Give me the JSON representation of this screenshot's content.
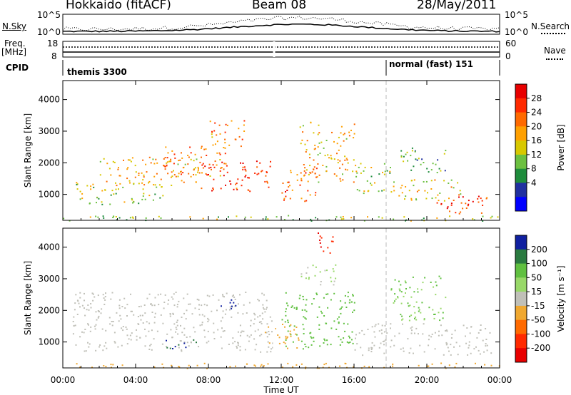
{
  "header": {
    "station": "Hokkaido (fitACF)",
    "beam": "Beam 08",
    "date": "28/May/2011"
  },
  "panels": {
    "noise": {
      "left_label": "N.Sky",
      "right_label": "N.Search",
      "left_ticks": [
        "10^5",
        "10^0"
      ],
      "right_ticks": [
        "10^5",
        "10^0"
      ]
    },
    "freq": {
      "left_label": "Freq.",
      "left_unit": "[MHz]",
      "right_label": "Nave",
      "left_ticks": [
        "18",
        "8"
      ],
      "right_ticks": [
        "60",
        "0"
      ]
    },
    "cpid": {
      "label": "CPID",
      "modes": [
        "themis 3300",
        "normal (fast) 151"
      ]
    }
  },
  "power_colorbar": {
    "label": "Power [dB]",
    "ticks": [
      "28",
      "24",
      "20",
      "16",
      "12",
      "8",
      "4"
    ],
    "colors": [
      "#e80000",
      "#ff2a00",
      "#ff6a00",
      "#ffa000",
      "#d8c800",
      "#6cc040",
      "#1e8c3c",
      "#2030a0",
      "#0000ff"
    ]
  },
  "velocity_colorbar": {
    "label": "Velocity [m s⁻¹]",
    "ticks": [
      "200",
      "100",
      "50",
      "15",
      "-15",
      "-50",
      "-100",
      "-200"
    ],
    "colors": [
      "#1020a0",
      "#2a7a40",
      "#60c040",
      "#98d868",
      "#c0c0b8",
      "#f0a830",
      "#ff6a00",
      "#ff2a00",
      "#e80000"
    ]
  },
  "time_axis": {
    "label": "Time UT",
    "ticks": [
      "00:00",
      "04:00",
      "08:00",
      "12:00",
      "16:00",
      "20:00",
      "00:00"
    ]
  },
  "range_axis": {
    "label": "Slant Range [km]",
    "ticks": [
      "4000",
      "3000",
      "2000",
      "1000"
    ]
  },
  "chart_data": [
    {
      "type": "heatmap",
      "title": "Power",
      "xlabel": "Time UT",
      "ylabel": "Slant Range [km]",
      "xlim": [
        "00:00",
        "24:00"
      ],
      "ylim": [
        180,
        4600
      ],
      "colorbar": {
        "label": "Power [dB]",
        "range": [
          0,
          30
        ],
        "ticks": [
          4,
          8,
          12,
          16,
          20,
          24,
          28
        ]
      },
      "regions": [
        {
          "t0": 0.5,
          "t1": 5.5,
          "r0": 700,
          "r1": 1400,
          "value": 14
        },
        {
          "t0": 2.0,
          "t1": 7.5,
          "r0": 1300,
          "r1": 2200,
          "value": 18
        },
        {
          "t0": 5.5,
          "t1": 9.0,
          "r0": 1600,
          "r1": 2600,
          "value": 22
        },
        {
          "t0": 7.5,
          "t1": 11.5,
          "r0": 1100,
          "r1": 2100,
          "value": 26
        },
        {
          "t0": 8.0,
          "t1": 10.0,
          "r0": 2500,
          "r1": 3400,
          "value": 20
        },
        {
          "t0": 12.0,
          "t1": 14.0,
          "r0": 800,
          "r1": 1900,
          "value": 24
        },
        {
          "t0": 13.0,
          "t1": 16.0,
          "r0": 1400,
          "r1": 3300,
          "value": 18
        },
        {
          "t0": 16.0,
          "t1": 18.0,
          "r0": 1000,
          "r1": 2000,
          "value": 14
        },
        {
          "t0": 18.0,
          "t1": 22.0,
          "r0": 800,
          "r1": 1500,
          "value": 16
        },
        {
          "t0": 20.5,
          "t1": 23.5,
          "r0": 400,
          "r1": 1000,
          "value": 26
        },
        {
          "t0": 18.5,
          "t1": 21.0,
          "r0": 1700,
          "r1": 2500,
          "value": 10
        },
        {
          "t0": 0.0,
          "t1": 24.0,
          "r0": 180,
          "r1": 350,
          "value": 12
        }
      ]
    },
    {
      "type": "heatmap",
      "title": "Velocity",
      "xlabel": "Time UT",
      "ylabel": "Slant Range [km]",
      "xlim": [
        "00:00",
        "24:00"
      ],
      "ylim": [
        180,
        4600
      ],
      "colorbar": {
        "label": "Velocity [m s⁻¹]",
        "range": [
          -200,
          200
        ],
        "ticks": [
          200,
          100,
          50,
          15,
          -15,
          -50,
          -100,
          -200
        ]
      },
      "regions": [
        {
          "t0": 0.5,
          "t1": 11.5,
          "r0": 700,
          "r1": 2600,
          "value": 0
        },
        {
          "t0": 8.5,
          "t1": 9.5,
          "r0": 2000,
          "r1": 2400,
          "value": 200
        },
        {
          "t0": 5.5,
          "t1": 7.5,
          "r0": 800,
          "r1": 1100,
          "value": 150
        },
        {
          "t0": 12.0,
          "t1": 16.0,
          "r0": 800,
          "r1": 2600,
          "value": 40
        },
        {
          "t0": 11.0,
          "t1": 13.0,
          "r0": 800,
          "r1": 1600,
          "value": -30
        },
        {
          "t0": 13.0,
          "t1": 15.0,
          "r0": 2800,
          "r1": 3500,
          "value": 20
        },
        {
          "t0": 14.0,
          "t1": 15.0,
          "r0": 3800,
          "r1": 4500,
          "value": -150
        },
        {
          "t0": 16.0,
          "t1": 23.5,
          "r0": 600,
          "r1": 1600,
          "value": 0
        },
        {
          "t0": 18.0,
          "t1": 21.0,
          "r0": 1700,
          "r1": 3100,
          "value": 30
        },
        {
          "t0": 0.0,
          "t1": 24.0,
          "r0": 180,
          "r1": 350,
          "value": -40
        }
      ]
    }
  ]
}
